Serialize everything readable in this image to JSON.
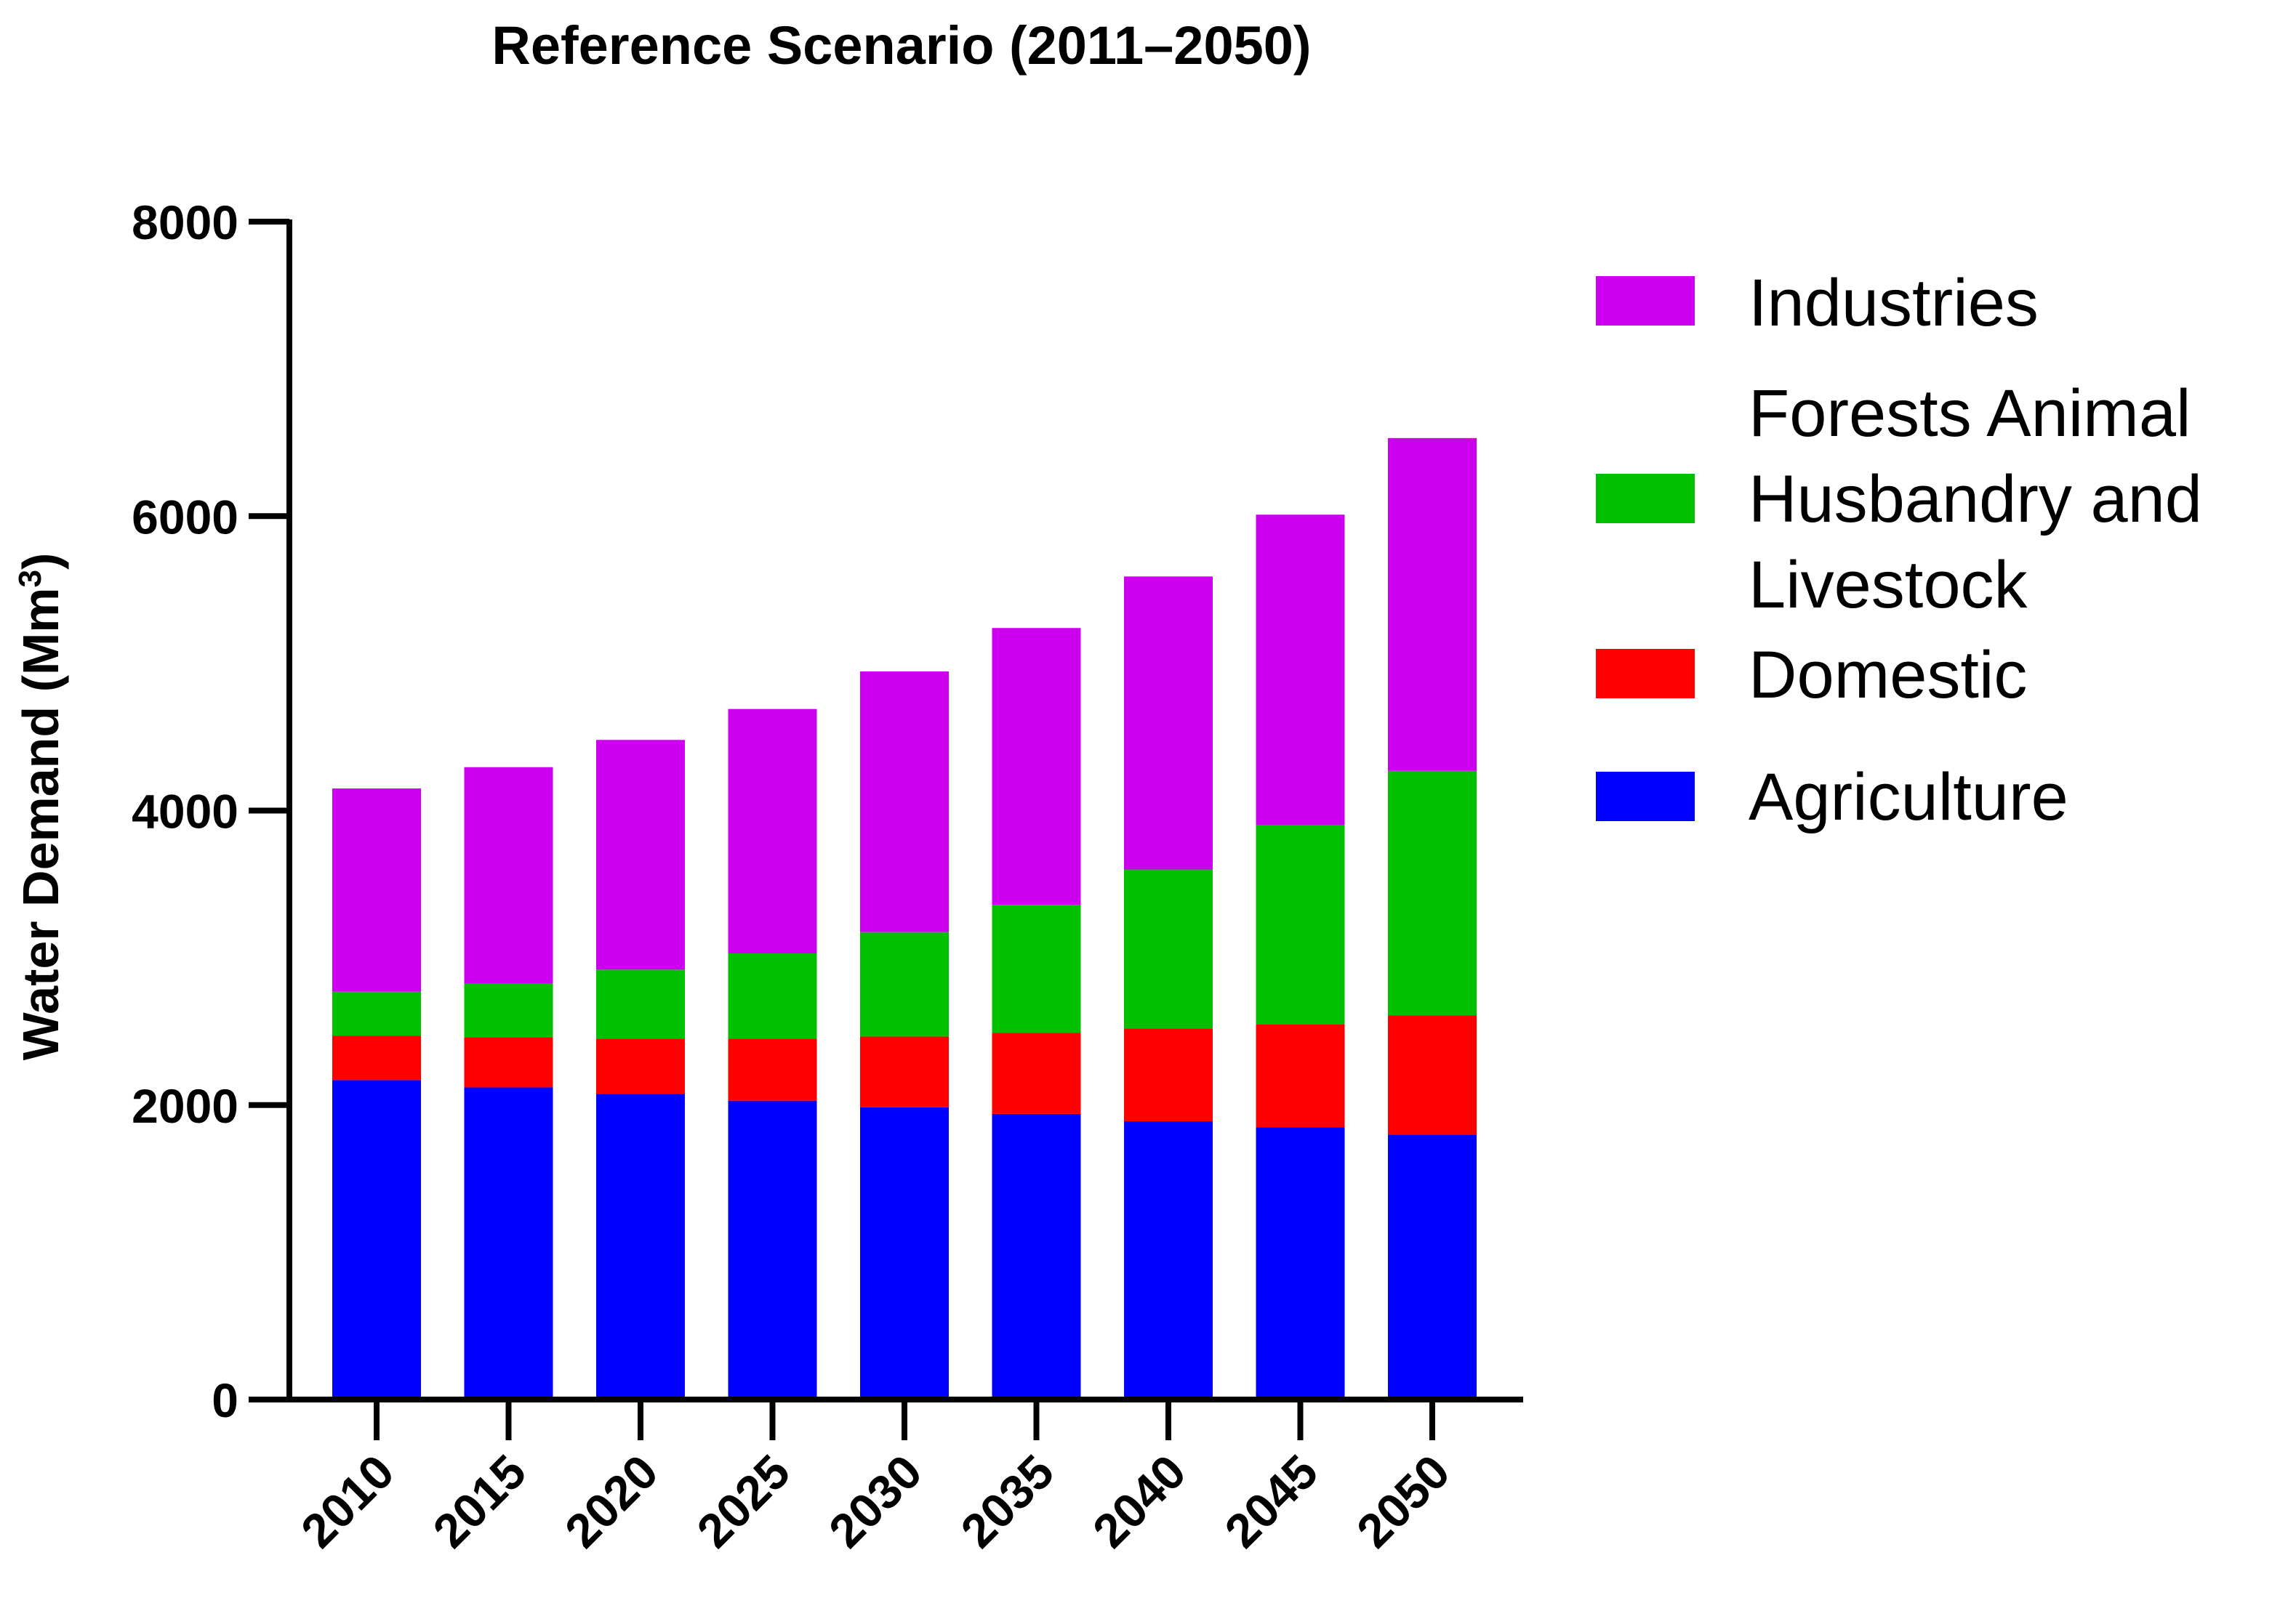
{
  "chart_data": {
    "type": "bar",
    "stacked": true,
    "title": "Reference Scenario (2011–2050)",
    "xlabel": "",
    "ylabel": "Water Demand (Mm",
    "ylabel_superscript": "3",
    "ylabel_close": ")",
    "ylim": [
      0,
      8000
    ],
    "yticks": [
      "0",
      "2000",
      "4000",
      "6000",
      "8000"
    ],
    "categories": [
      "2010",
      "2015",
      "2020",
      "2025",
      "2030",
      "2035",
      "2040",
      "2045",
      "2050"
    ],
    "series": [
      {
        "name": "Agriculture",
        "color": "#0000ff",
        "values": [
          2170,
          2120,
          2075,
          2030,
          1985,
          1940,
          1890,
          1850,
          1800
        ]
      },
      {
        "name": "Domestic",
        "color": "#ff0000",
        "values": [
          300,
          340,
          375,
          420,
          480,
          550,
          630,
          700,
          810
        ]
      },
      {
        "name": "Forests Animal Husbandry and Livestock",
        "color": "#00c000",
        "values": [
          300,
          365,
          470,
          580,
          710,
          870,
          1080,
          1350,
          1660
        ]
      },
      {
        "name": "Industries",
        "color": "#cc00ee",
        "values": [
          1380,
          1470,
          1560,
          1660,
          1770,
          1880,
          1990,
          2110,
          2260
        ]
      }
    ],
    "legend": {
      "placement": "right",
      "items": [
        {
          "series": "Industries",
          "color": "#cc00ee",
          "lines": [
            "Industries"
          ]
        },
        {
          "series": "Forests Animal Husbandry and Livestock",
          "color": "#00c000",
          "lines": [
            "Forests Animal",
            "Husbandry and",
            "Livestock"
          ]
        },
        {
          "series": "Domestic",
          "color": "#ff0000",
          "lines": [
            "Domestic"
          ]
        },
        {
          "series": "Agriculture",
          "color": "#0000ff",
          "lines": [
            "Agriculture"
          ]
        }
      ]
    }
  }
}
